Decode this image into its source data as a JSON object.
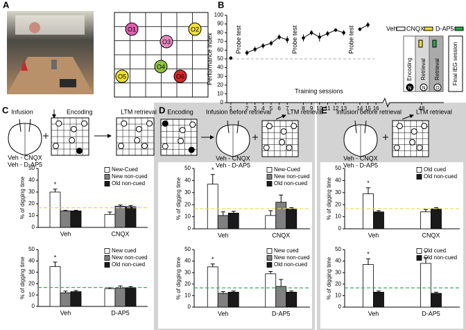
{
  "panels": {
    "a": "A",
    "b": "B",
    "c": "C",
    "d": "D",
    "e": "E"
  },
  "arena": {
    "labels": [
      "O1",
      "O2",
      "O3",
      "O4",
      "O5",
      "O6"
    ]
  },
  "schematic": {
    "veh": "Veh",
    "cnqx": "CNQX",
    "dap5": "D-AP5",
    "encoding": "Encoding",
    "retrieval_1": "Retrieval",
    "retrieval_2": "Retrieval",
    "n_1": "N",
    "n_2": "N",
    "o": "O",
    "final": "Final IEG session"
  },
  "diagrams": {
    "c": {
      "infusion": "Infusion",
      "encoding": "Encoding",
      "ltm": "LTM retrieval",
      "drugs": [
        "Veh - CNQX",
        "Veh - D-AP5"
      ]
    },
    "d": {
      "encoding": "Encoding",
      "infusion": "Infusion before retrieval",
      "ltm": "LTM retrieval",
      "drugs": [
        "Veh - CNQX",
        "Veh - D-AP5"
      ]
    },
    "e": {
      "infusion": "Infusion before retrieval",
      "ltm": "LTM retrieval",
      "drugs": [
        "Veh - CNQX",
        "Veh - D-AP5"
      ]
    }
  },
  "chart_data": [
    {
      "type": "line",
      "ylabel": "Performance index",
      "xlabel": "Training sessions",
      "categories": [
        "1",
        null,
        "2",
        "3",
        "4",
        "5",
        "6",
        "7",
        null,
        "8",
        "9",
        "10",
        "11",
        "12",
        "13",
        null,
        "14",
        "15",
        "16"
      ],
      "values": [
        51,
        null,
        57,
        61,
        65,
        68,
        75,
        72,
        null,
        74,
        80,
        75,
        79,
        83,
        80,
        null,
        84,
        89,
        null
      ],
      "errors": [
        2,
        null,
        3,
        3,
        3,
        3,
        3,
        4,
        null,
        4,
        3,
        5,
        3,
        2,
        3,
        null,
        2,
        3,
        null
      ],
      "color": "#000000",
      "ylim": [
        0,
        100
      ],
      "yticks": [
        0,
        10,
        20,
        30,
        40,
        50,
        60,
        70,
        80,
        90,
        100
      ],
      "reference_line": 50,
      "annotations": [
        "Probe test",
        "Probe test",
        "Probe test"
      ],
      "extra_xticks": [
        48
      ]
    },
    {
      "type": "bar",
      "ylabel": "% of digging time",
      "categories": [
        "Veh",
        "CNQX"
      ],
      "series": [
        {
          "name": "New-Cued",
          "color": "#ffffff",
          "values": [
            30,
            11
          ],
          "errors": [
            2.5,
            2
          ]
        },
        {
          "name": "New non-cued",
          "color": "#808080",
          "values": [
            14,
            18
          ],
          "errors": [
            0.5,
            1
          ]
        },
        {
          "name": "Old non-cued",
          "color": "#1a1a1a",
          "values": [
            14,
            17.5
          ],
          "errors": [
            0.5,
            1
          ]
        }
      ],
      "ylim": [
        0,
        50
      ],
      "yticks": [
        0,
        10,
        20,
        30,
        40,
        50
      ],
      "reference_line": 16.7,
      "reference_color": "#e8d84a",
      "significance": [
        "*",
        null
      ]
    },
    {
      "type": "bar",
      "ylabel": "% of digging time",
      "categories": [
        "Veh",
        "D-AP5"
      ],
      "series": [
        {
          "name": "New cued",
          "color": "#ffffff",
          "values": [
            35,
            15.5
          ],
          "errors": [
            4,
            1
          ]
        },
        {
          "name": "New non-cued",
          "color": "#808080",
          "values": [
            12,
            16
          ],
          "errors": [
            1.5,
            2
          ]
        },
        {
          "name": "Old non-cued",
          "color": "#1a1a1a",
          "values": [
            13,
            16.5
          ],
          "errors": [
            1,
            1
          ]
        }
      ],
      "ylim": [
        0,
        50
      ],
      "yticks": [
        0,
        10,
        20,
        30,
        40,
        50
      ],
      "reference_line": 16.7,
      "reference_color": "#3aa86b",
      "significance": [
        "*",
        null
      ]
    },
    {
      "type": "bar",
      "ylabel": "% of digging time",
      "categories": [
        "Veh",
        "CNQX"
      ],
      "series": [
        {
          "name": "New-Cued",
          "color": "#ffffff",
          "values": [
            37,
            11
          ],
          "errors": [
            8,
            4
          ]
        },
        {
          "name": "New non-cued",
          "color": "#808080",
          "values": [
            11,
            22
          ],
          "errors": [
            3,
            6
          ]
        },
        {
          "name": "Old non-cued",
          "color": "#1a1a1a",
          "values": [
            13,
            16.5
          ],
          "errors": [
            1.5,
            1
          ]
        }
      ],
      "ylim": [
        0,
        50
      ],
      "yticks": [
        0,
        10,
        20,
        30,
        40,
        50
      ],
      "reference_line": 16.7,
      "reference_color": "#e8d84a",
      "significance": [
        "*",
        null
      ]
    },
    {
      "type": "bar",
      "ylabel": "% of digging time",
      "categories": [
        "Veh",
        "D-AP5"
      ],
      "series": [
        {
          "name": "New cued",
          "color": "#ffffff",
          "values": [
            35,
            29
          ],
          "errors": [
            2.5,
            2
          ]
        },
        {
          "name": "New non-cued",
          "color": "#808080",
          "values": [
            12,
            18
          ],
          "errors": [
            1.5,
            6
          ]
        },
        {
          "name": "Old non-cued",
          "color": "#1a1a1a",
          "values": [
            13,
            13
          ],
          "errors": [
            1,
            1
          ]
        }
      ],
      "ylim": [
        0,
        50
      ],
      "yticks": [
        0,
        10,
        20,
        30,
        40,
        50
      ],
      "reference_line": 16.7,
      "reference_color": "#3aa86b",
      "significance": [
        "*",
        "*"
      ]
    },
    {
      "type": "bar",
      "ylabel": "% of digging time",
      "categories": [
        "Veh",
        "CNQX"
      ],
      "series": [
        {
          "name": "Old cued",
          "color": "#ffffff",
          "values": [
            29,
            14
          ],
          "errors": [
            5,
            2
          ]
        },
        {
          "name": "Old non-cued",
          "color": "#1a1a1a",
          "values": [
            14,
            16.5
          ],
          "errors": [
            1,
            1
          ]
        }
      ],
      "ylim": [
        0,
        50
      ],
      "yticks": [
        0,
        10,
        20,
        30,
        40,
        50
      ],
      "reference_line": 16.7,
      "reference_color": "#e8d84a",
      "significance": [
        "*",
        null
      ]
    },
    {
      "type": "bar",
      "ylabel": "% of digging time",
      "categories": [
        "Veh",
        "D-AP5"
      ],
      "series": [
        {
          "name": "Old cued",
          "color": "#ffffff",
          "values": [
            37,
            38
          ],
          "errors": [
            5,
            5
          ]
        },
        {
          "name": "Old non-cued",
          "color": "#1a1a1a",
          "values": [
            13,
            12
          ],
          "errors": [
            1,
            1
          ]
        }
      ],
      "ylim": [
        0,
        50
      ],
      "yticks": [
        0,
        10,
        20,
        30,
        40,
        50
      ],
      "reference_line": 16.7,
      "reference_color": "#3aa86b",
      "significance": [
        "*",
        "*"
      ]
    }
  ]
}
